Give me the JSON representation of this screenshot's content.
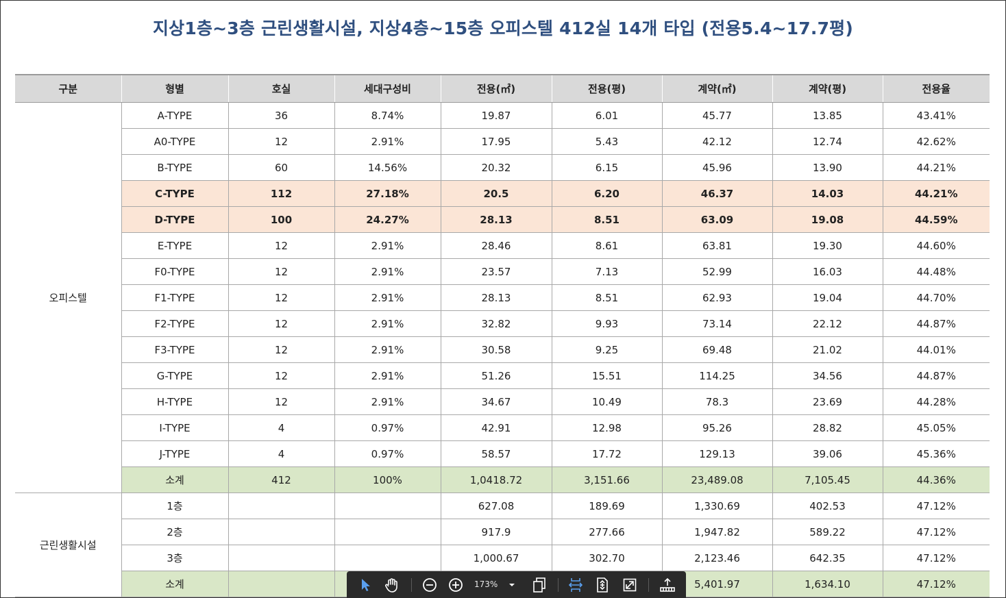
{
  "title": "지상1층~3층 근린생활시설, 지상4층~15층 오피스텔 412실 14개 타입 (전용5.4~17.7평)",
  "table": {
    "headers": [
      "구분",
      "형별",
      "호실",
      "세대구성비",
      "전용(㎡)",
      "전용(평)",
      "계약(㎡)",
      "계약(평)",
      "전용율"
    ],
    "officetel": {
      "label": "오피스텔",
      "rows": [
        [
          "A-TYPE",
          "36",
          "8.74%",
          "19.87",
          "6.01",
          "45.77",
          "13.85",
          "43.41%"
        ],
        [
          "A0-TYPE",
          "12",
          "2.91%",
          "17.95",
          "5.43",
          "42.12",
          "12.74",
          "42.62%"
        ],
        [
          "B-TYPE",
          "60",
          "14.56%",
          "20.32",
          "6.15",
          "45.96",
          "13.90",
          "44.21%"
        ],
        [
          "C-TYPE",
          "112",
          "27.18%",
          "20.5",
          "6.20",
          "46.37",
          "14.03",
          "44.21%"
        ],
        [
          "D-TYPE",
          "100",
          "24.27%",
          "28.13",
          "8.51",
          "63.09",
          "19.08",
          "44.59%"
        ],
        [
          "E-TYPE",
          "12",
          "2.91%",
          "28.46",
          "8.61",
          "63.81",
          "19.30",
          "44.60%"
        ],
        [
          "F0-TYPE",
          "12",
          "2.91%",
          "23.57",
          "7.13",
          "52.99",
          "16.03",
          "44.48%"
        ],
        [
          "F1-TYPE",
          "12",
          "2.91%",
          "28.13",
          "8.51",
          "62.93",
          "19.04",
          "44.70%"
        ],
        [
          "F2-TYPE",
          "12",
          "2.91%",
          "32.82",
          "9.93",
          "73.14",
          "22.12",
          "44.87%"
        ],
        [
          "F3-TYPE",
          "12",
          "2.91%",
          "30.58",
          "9.25",
          "69.48",
          "21.02",
          "44.01%"
        ],
        [
          "G-TYPE",
          "12",
          "2.91%",
          "51.26",
          "15.51",
          "114.25",
          "34.56",
          "44.87%"
        ],
        [
          "H-TYPE",
          "12",
          "2.91%",
          "34.67",
          "10.49",
          "78.3",
          "23.69",
          "44.28%"
        ],
        [
          "I-TYPE",
          "4",
          "0.97%",
          "42.91",
          "12.98",
          "95.26",
          "28.82",
          "45.05%"
        ],
        [
          "J-TYPE",
          "4",
          "0.97%",
          "58.57",
          "17.72",
          "129.13",
          "39.06",
          "45.36%"
        ],
        [
          "소계",
          "412",
          "100%",
          "1,0418.72",
          "3,151.66",
          "23,489.08",
          "7,105.45",
          "44.36%"
        ]
      ]
    },
    "retail": {
      "label": "근린생활시설",
      "rows": [
        [
          "1층",
          "",
          "",
          "627.08",
          "189.69",
          "1,330.69",
          "402.53",
          "47.12%"
        ],
        [
          "2층",
          "",
          "",
          "917.9",
          "277.66",
          "1,947.82",
          "589.22",
          "47.12%"
        ],
        [
          "3층",
          "",
          "",
          "1,000.67",
          "302.70",
          "2,123.46",
          "642.35",
          "47.12%"
        ],
        [
          "소계",
          "",
          "",
          "",
          "",
          "5,401.97",
          "1,634.10",
          "47.12%"
        ]
      ]
    }
  },
  "viewer_toolbar": {
    "zoom_label": "173%",
    "icons": [
      "select-cursor-icon",
      "hand-tool-icon",
      "zoom-out-icon",
      "zoom-in-icon",
      "zoom-dropdown-icon",
      "page-view-icon",
      "fit-width-icon",
      "fit-page-icon",
      "fullscreen-icon",
      "export-icon"
    ]
  },
  "colors": {
    "title": "#2f4f7f",
    "header_bg": "#d9d9d9",
    "highlight_bg": "#fbe5d6",
    "subtotal_bg": "#d9e7c7",
    "toolbar_bg": "#2a2a2a"
  }
}
